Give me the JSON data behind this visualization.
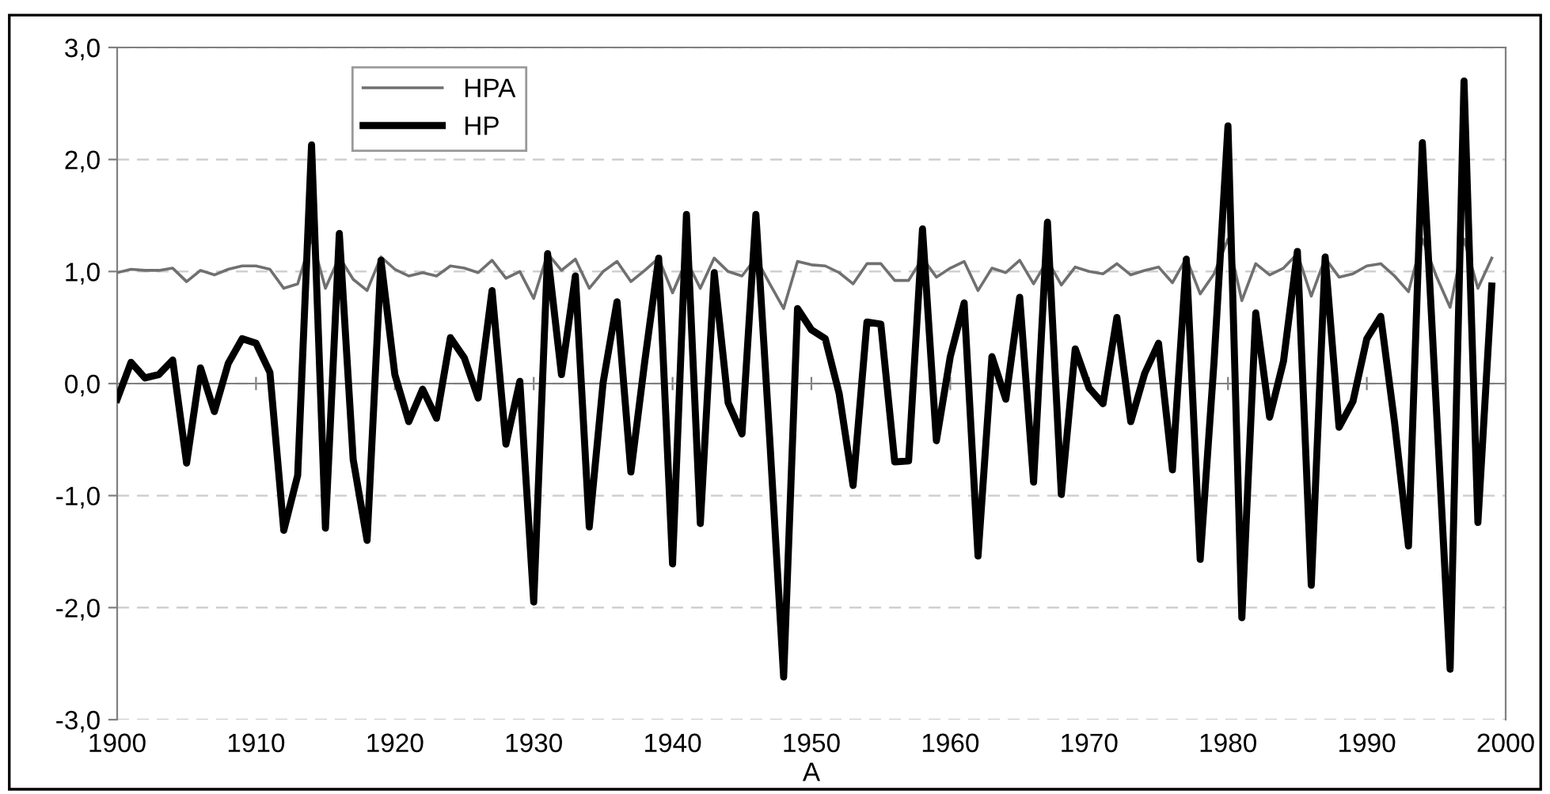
{
  "chart_data": {
    "type": "line",
    "xlabel": "A",
    "x": [
      1900,
      1901,
      1902,
      1903,
      1904,
      1905,
      1906,
      1907,
      1908,
      1909,
      1910,
      1911,
      1912,
      1913,
      1914,
      1915,
      1916,
      1917,
      1918,
      1919,
      1920,
      1921,
      1922,
      1923,
      1924,
      1925,
      1926,
      1927,
      1928,
      1929,
      1930,
      1931,
      1932,
      1933,
      1934,
      1935,
      1936,
      1937,
      1938,
      1939,
      1940,
      1941,
      1942,
      1943,
      1944,
      1945,
      1946,
      1947,
      1948,
      1949,
      1950,
      1951,
      1952,
      1953,
      1954,
      1955,
      1956,
      1957,
      1958,
      1959,
      1960,
      1961,
      1962,
      1963,
      1964,
      1965,
      1966,
      1967,
      1968,
      1969,
      1970,
      1971,
      1972,
      1973,
      1974,
      1975,
      1976,
      1977,
      1978,
      1979,
      1980,
      1981,
      1982,
      1983,
      1984,
      1985,
      1986,
      1987,
      1988,
      1989,
      1990,
      1991,
      1992,
      1993,
      1994,
      1995,
      1996,
      1997,
      1998,
      1999
    ],
    "series": [
      {
        "name": "HPA",
        "color": "#707070",
        "values": [
          0.99,
          1.02,
          1.01,
          1.01,
          1.03,
          0.91,
          1.01,
          0.97,
          1.02,
          1.05,
          1.05,
          1.02,
          0.85,
          0.89,
          1.3,
          0.85,
          1.13,
          0.93,
          0.83,
          1.13,
          1.02,
          0.96,
          0.99,
          0.96,
          1.05,
          1.03,
          0.99,
          1.1,
          0.94,
          1.0,
          0.76,
          1.16,
          1.01,
          1.11,
          0.85,
          1.0,
          1.09,
          0.91,
          1.01,
          1.12,
          0.81,
          1.1,
          0.85,
          1.12,
          1.0,
          0.96,
          1.12,
          0.89,
          0.67,
          1.09,
          1.06,
          1.05,
          0.99,
          0.89,
          1.07,
          1.07,
          0.92,
          0.92,
          1.12,
          0.95,
          1.03,
          1.09,
          0.83,
          1.03,
          0.99,
          1.1,
          0.89,
          1.1,
          0.88,
          1.04,
          1.0,
          0.98,
          1.07,
          0.97,
          1.01,
          1.04,
          0.9,
          1.12,
          0.8,
          0.98,
          1.29,
          0.74,
          1.07,
          0.97,
          1.03,
          1.16,
          0.78,
          1.12,
          0.95,
          0.98,
          1.05,
          1.07,
          0.96,
          0.82,
          1.29,
          0.96,
          0.68,
          1.29,
          0.85,
          1.12
        ]
      },
      {
        "name": "HP",
        "color": "#000000",
        "values": [
          -0.14,
          0.19,
          0.05,
          0.08,
          0.21,
          -0.71,
          0.14,
          -0.25,
          0.18,
          0.4,
          0.36,
          0.1,
          -1.31,
          -0.82,
          2.13,
          -1.29,
          1.34,
          -0.68,
          -1.4,
          1.1,
          0.08,
          -0.34,
          -0.05,
          -0.31,
          0.41,
          0.23,
          -0.13,
          0.83,
          -0.54,
          0.02,
          -1.95,
          1.16,
          0.08,
          0.96,
          -1.28,
          0.01,
          0.73,
          -0.79,
          0.2,
          1.12,
          -1.61,
          1.51,
          -1.25,
          0.99,
          -0.17,
          -0.45,
          1.51,
          -0.5,
          -2.62,
          0.67,
          0.48,
          0.4,
          -0.09,
          -0.91,
          0.55,
          0.53,
          -0.7,
          -0.69,
          1.38,
          -0.51,
          0.24,
          0.72,
          -1.54,
          0.24,
          -0.14,
          0.77,
          -0.88,
          1.44,
          -0.99,
          0.31,
          -0.04,
          -0.18,
          0.59,
          -0.34,
          0.09,
          0.36,
          -0.77,
          1.11,
          -1.57,
          0.2,
          2.3,
          -2.09,
          0.63,
          -0.3,
          0.2,
          1.18,
          -1.8,
          1.13,
          -0.39,
          -0.16,
          0.4,
          0.6,
          -0.35,
          -1.45,
          2.15,
          -0.2,
          -2.55,
          2.7,
          -1.24,
          0.87
        ]
      }
    ],
    "xlim": [
      1900,
      2000
    ],
    "xticks": [
      1900,
      1910,
      1920,
      1930,
      1940,
      1950,
      1960,
      1970,
      1980,
      1990,
      2000
    ],
    "ylim": [
      -3,
      3
    ],
    "yticks": [
      {
        "value": -3,
        "label": "-3,0"
      },
      {
        "value": -2,
        "label": "-2,0"
      },
      {
        "value": -1,
        "label": "-1,0"
      },
      {
        "value": 0,
        "label": "0,0"
      },
      {
        "value": 1,
        "label": "1,0"
      },
      {
        "value": 2,
        "label": "2,0"
      },
      {
        "value": 3,
        "label": "3,0"
      }
    ],
    "grid": "y",
    "legend": "top left",
    "marker": "none",
    "line_style": "solid"
  }
}
